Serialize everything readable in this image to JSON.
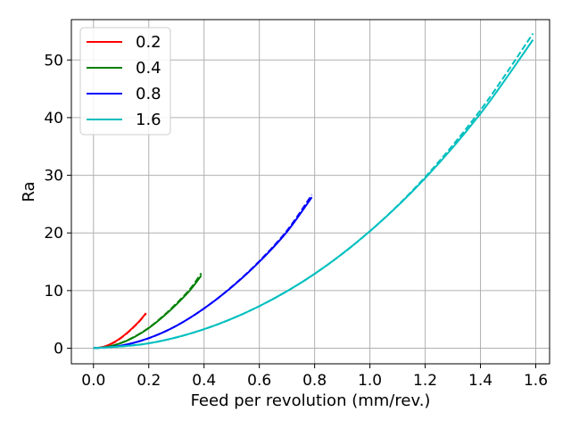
{
  "chart_data": {
    "type": "line",
    "title": "",
    "xlabel": "Feed per revolution (mm/rev.)",
    "ylabel": "Ra",
    "xlim": [
      -0.08,
      1.65
    ],
    "ylim": [
      -2.7,
      57.0
    ],
    "xticks": [
      0.0,
      0.2,
      0.4,
      0.6,
      0.8,
      1.0,
      1.2,
      1.4,
      1.6
    ],
    "xtick_labels": [
      "0.0",
      "0.2",
      "0.4",
      "0.6",
      "0.8",
      "1.0",
      "1.2",
      "1.4",
      "1.6"
    ],
    "yticks": [
      0,
      10,
      20,
      30,
      40,
      50
    ],
    "ytick_labels": [
      "0",
      "10",
      "20",
      "30",
      "40",
      "50"
    ],
    "grid": true,
    "legend_position": "top-left",
    "series": [
      {
        "name": "0.2",
        "color": "#ff0000",
        "solid": [
          [
            0.0,
            0.0
          ],
          [
            0.04,
            0.3
          ],
          [
            0.08,
            1.2
          ],
          [
            0.12,
            2.6
          ],
          [
            0.16,
            4.4
          ],
          [
            0.19,
            6.1
          ]
        ],
        "dashed": [
          [
            0.0,
            0.0
          ],
          [
            0.04,
            0.28
          ],
          [
            0.08,
            1.15
          ],
          [
            0.12,
            2.55
          ],
          [
            0.16,
            4.35
          ],
          [
            0.19,
            6.0
          ]
        ]
      },
      {
        "name": "0.4",
        "color": "#008000",
        "solid": [
          [
            0.0,
            0.0
          ],
          [
            0.05,
            0.25
          ],
          [
            0.1,
            0.9
          ],
          [
            0.15,
            2.0
          ],
          [
            0.2,
            3.5
          ],
          [
            0.25,
            5.4
          ],
          [
            0.3,
            7.6
          ],
          [
            0.35,
            10.1
          ],
          [
            0.39,
            12.6
          ]
        ],
        "dashed": [
          [
            0.0,
            0.0
          ],
          [
            0.05,
            0.25
          ],
          [
            0.1,
            0.92
          ],
          [
            0.15,
            2.05
          ],
          [
            0.2,
            3.55
          ],
          [
            0.25,
            5.5
          ],
          [
            0.3,
            7.75
          ],
          [
            0.35,
            10.3
          ],
          [
            0.39,
            13.0
          ]
        ]
      },
      {
        "name": "0.8",
        "color": "#0000ff",
        "solid": [
          [
            0.0,
            0.0
          ],
          [
            0.1,
            0.45
          ],
          [
            0.2,
            1.75
          ],
          [
            0.3,
            3.9
          ],
          [
            0.4,
            6.9
          ],
          [
            0.5,
            10.6
          ],
          [
            0.6,
            15.0
          ],
          [
            0.7,
            20.2
          ],
          [
            0.79,
            26.2
          ]
        ],
        "dashed": [
          [
            0.0,
            0.0
          ],
          [
            0.1,
            0.44
          ],
          [
            0.2,
            1.74
          ],
          [
            0.3,
            3.9
          ],
          [
            0.4,
            6.9
          ],
          [
            0.5,
            10.65
          ],
          [
            0.6,
            15.1
          ],
          [
            0.7,
            20.4
          ],
          [
            0.79,
            26.6
          ]
        ]
      },
      {
        "name": "1.6",
        "color": "#00bfbf",
        "solid": [
          [
            0.0,
            0.0
          ],
          [
            0.2,
            0.85
          ],
          [
            0.4,
            3.3
          ],
          [
            0.6,
            7.3
          ],
          [
            0.8,
            12.9
          ],
          [
            1.0,
            20.3
          ],
          [
            1.2,
            29.5
          ],
          [
            1.4,
            40.7
          ],
          [
            1.59,
            53.5
          ]
        ],
        "dashed": [
          [
            0.0,
            0.0
          ],
          [
            0.2,
            0.85
          ],
          [
            0.4,
            3.3
          ],
          [
            0.6,
            7.3
          ],
          [
            0.8,
            12.9
          ],
          [
            1.0,
            20.3
          ],
          [
            1.2,
            29.7
          ],
          [
            1.4,
            41.3
          ],
          [
            1.59,
            54.6
          ]
        ]
      }
    ]
  }
}
